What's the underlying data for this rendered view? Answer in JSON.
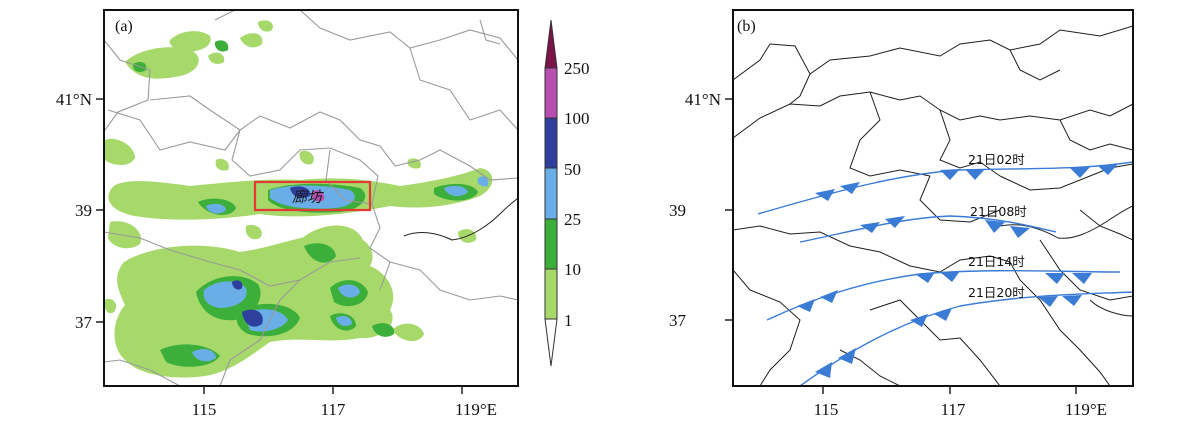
{
  "panels": [
    {
      "tag": "(a)",
      "lat_labels": [
        "41°N",
        "39",
        "37"
      ],
      "lon_labels": [
        "115",
        "117",
        "119°E"
      ],
      "highlight_label": "廊坊",
      "highlight_color": "#e53935"
    },
    {
      "tag": "(b)",
      "lat_labels": [
        "41°N",
        "39",
        "37"
      ],
      "lon_labels": [
        "115",
        "117",
        "119°E"
      ],
      "fronts": [
        {
          "label": "21日02时"
        },
        {
          "label": "21日08时"
        },
        {
          "label": "21日14时"
        },
        {
          "label": "21日20时"
        }
      ],
      "front_color": "#3a7bd5"
    }
  ],
  "colorbar": {
    "levels": [
      "1",
      "10",
      "25",
      "50",
      "100",
      "250"
    ],
    "colors": [
      "#ffffff",
      "#a6d96a",
      "#3cae3a",
      "#6aaee8",
      "#2f3f9e",
      "#b84fb0",
      "#7a1449"
    ]
  }
}
